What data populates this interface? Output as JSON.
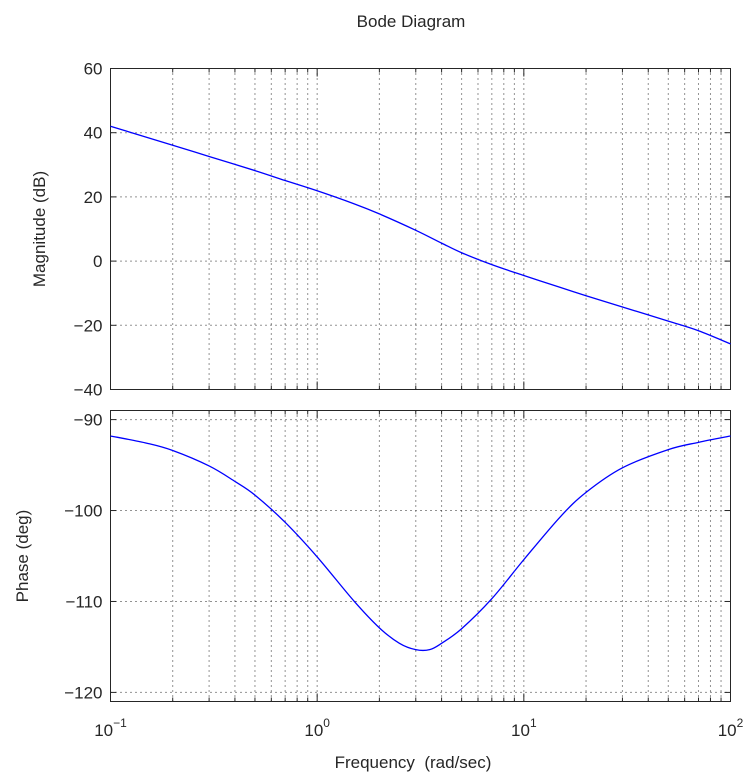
{
  "chart_data": {
    "type": "line",
    "title": "Bode Diagram",
    "xlabel": "Frequency  (rad/sec)",
    "x_scale": "log",
    "xlim": [
      0.1,
      100
    ],
    "x_tick_labels": [
      {
        "base": "10",
        "exp": "−1"
      },
      {
        "base": "10",
        "exp": "0"
      },
      {
        "base": "10",
        "exp": "1"
      },
      {
        "base": "10",
        "exp": "2"
      }
    ],
    "grid": true,
    "line_color": "#0000ff",
    "panels": [
      {
        "name": "magnitude",
        "ylabel": "Magnitude (dB)",
        "ylim": [
          -40,
          60
        ],
        "yticks": [
          -40,
          -20,
          0,
          20,
          40,
          60
        ],
        "ytick_labels": [
          "−40",
          "−20",
          "0",
          "20",
          "40",
          "60"
        ],
        "x": [
          0.1,
          0.2,
          0.3,
          0.5,
          0.7,
          1.0,
          1.5,
          2.0,
          3.0,
          4.0,
          5.0,
          7.0,
          10.0,
          15.0,
          20.0,
          30.0,
          50.0,
          70.0,
          100.0
        ],
        "y": [
          42.0,
          36.1,
          32.6,
          28.2,
          25.1,
          21.9,
          17.9,
          14.7,
          9.6,
          5.6,
          2.6,
          -1.1,
          -4.5,
          -8.2,
          -10.8,
          -14.3,
          -18.7,
          -21.7,
          -25.8
        ]
      },
      {
        "name": "phase",
        "ylabel": "Phase (deg)",
        "ylim": [
          -121,
          -89
        ],
        "yticks": [
          -120,
          -110,
          -100,
          -90
        ],
        "ytick_labels": [
          "−120",
          "−110",
          "−100",
          "−90"
        ],
        "x": [
          0.1,
          0.15,
          0.2,
          0.3,
          0.4,
          0.5,
          0.7,
          1.0,
          1.5,
          2.0,
          2.5,
          3.0,
          3.5,
          4.0,
          5.0,
          7.0,
          10.0,
          15.0,
          20.0,
          30.0,
          50.0,
          70.0,
          100.0
        ],
        "y": [
          -91.8,
          -92.6,
          -93.4,
          -95.1,
          -96.8,
          -98.3,
          -101.3,
          -105.1,
          -109.9,
          -112.9,
          -114.6,
          -115.3,
          -115.3,
          -114.6,
          -113.0,
          -109.7,
          -105.4,
          -100.7,
          -98.0,
          -95.3,
          -93.3,
          -92.5,
          -91.8
        ]
      }
    ]
  }
}
